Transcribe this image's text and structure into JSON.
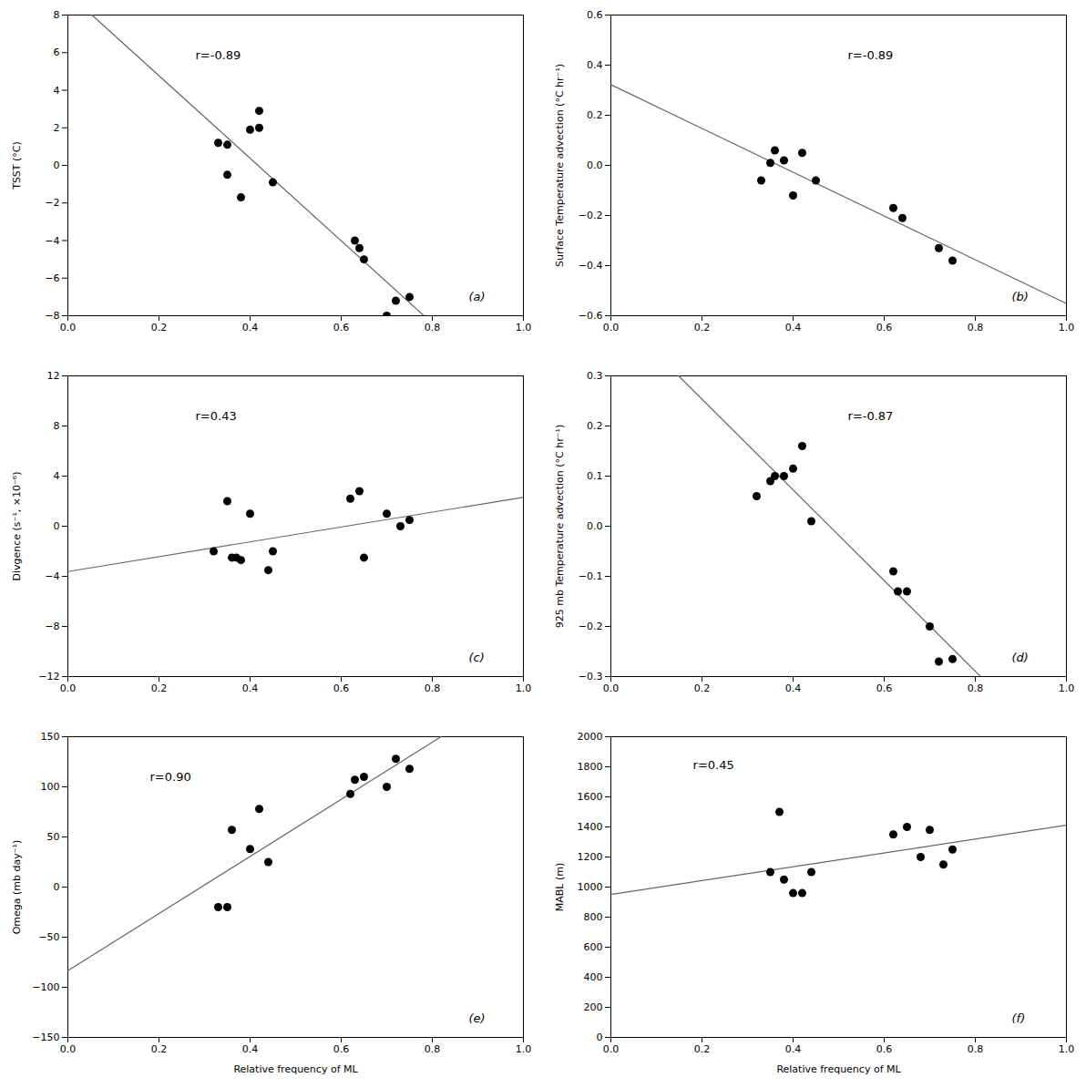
{
  "chart_data": [
    {
      "type": "scatter",
      "color": "black",
      "grid": false,
      "annotations": [
        "r=-0.89",
        "(a)"
      ],
      "ylabel": "TSST (°C)",
      "xlim": [
        0.0,
        1.0
      ],
      "ylim": [
        -8,
        8
      ],
      "xticks": [
        {
          "value": 0.0,
          "label": "0.0"
        },
        0.2,
        0.4,
        0.6,
        0.8,
        {
          "value": 1.0,
          "label": "1.0"
        }
      ],
      "yticks": [
        -8,
        -6,
        -4,
        -2,
        0,
        2,
        4,
        6,
        8
      ],
      "x": [
        0.33,
        0.35,
        0.35,
        0.38,
        0.4,
        0.42,
        0.42,
        0.45,
        0.63,
        0.64,
        0.65,
        0.7,
        0.72,
        0.75
      ],
      "values": [
        1.2,
        1.1,
        -0.5,
        -1.7,
        1.9,
        2.9,
        2.0,
        -0.9,
        -4.0,
        -4.4,
        -5.0,
        -8.0,
        -7.2,
        -7.0
      ],
      "regression_line": {
        "x": [
          0.0529,
          0.7817
        ],
        "y": [
          8,
          -8
        ],
        "color": "#666666"
      }
    },
    {
      "type": "scatter",
      "color": "black",
      "grid": false,
      "annotations": [
        "r=-0.89",
        "(b)"
      ],
      "ylabel": "Surface Temperature advection (°C hr⁻¹)",
      "xlim": [
        0.0,
        1.0
      ],
      "ylim": [
        -0.6,
        0.6
      ],
      "xticks": [
        {
          "value": 0.0,
          "label": "0.0"
        },
        0.2,
        0.4,
        0.6,
        0.8,
        {
          "value": 1.0,
          "label": "1.0"
        }
      ],
      "yticks": [
        -0.6,
        -0.4,
        -0.2,
        {
          "value": 0.0,
          "label": "0.0"
        },
        0.2,
        0.4,
        0.6
      ],
      "x": [
        0.33,
        0.35,
        0.36,
        0.38,
        0.4,
        0.42,
        0.45,
        0.62,
        0.64,
        0.72,
        0.75
      ],
      "values": [
        -0.06,
        0.01,
        0.06,
        0.02,
        -0.12,
        0.05,
        -0.06,
        -0.17,
        -0.21,
        -0.33,
        -0.38
      ],
      "regression_line": {
        "x": [
          0,
          1
        ],
        "y": [
          0.3222,
          -0.5513
        ],
        "color": "#666666"
      }
    },
    {
      "type": "scatter",
      "color": "black",
      "grid": false,
      "annotations": [
        "r=0.43",
        "(c)"
      ],
      "ylabel": "Divgence (s⁻¹, ×10⁻⁶)",
      "xlim": [
        0.0,
        1.0
      ],
      "ylim": [
        -12,
        12
      ],
      "xticks": [
        {
          "value": 0.0,
          "label": "0.0"
        },
        0.2,
        0.4,
        0.6,
        0.8,
        {
          "value": 1.0,
          "label": "1.0"
        }
      ],
      "yticks": [
        -12,
        -8,
        -4,
        0,
        4,
        8,
        12
      ],
      "x": [
        0.32,
        0.35,
        0.36,
        0.37,
        0.38,
        0.4,
        0.44,
        0.45,
        0.62,
        0.64,
        0.65,
        0.7,
        0.73,
        0.75
      ],
      "values": [
        -2.0,
        2.0,
        -2.5,
        -2.5,
        -2.7,
        1.0,
        -3.5,
        -2.0,
        2.2,
        2.8,
        -2.5,
        1.0,
        0.0,
        0.5
      ],
      "regression_line": {
        "x": [
          0,
          1
        ],
        "y": [
          -3.6187,
          2.3117
        ],
        "color": "#666666"
      }
    },
    {
      "type": "scatter",
      "color": "black",
      "grid": false,
      "annotations": [
        "r=-0.87",
        "(d)"
      ],
      "ylabel": "925 mb Temperature advection (°C hr⁻¹)",
      "xlim": [
        0.0,
        1.0
      ],
      "ylim": [
        -0.3,
        0.3
      ],
      "xticks": [
        {
          "value": 0.0,
          "label": "0.0"
        },
        0.2,
        0.4,
        0.6,
        0.8,
        {
          "value": 1.0,
          "label": "1.0"
        }
      ],
      "yticks": [
        -0.3,
        -0.2,
        -0.1,
        {
          "value": 0.0,
          "label": "0.0"
        },
        0.1,
        0.2,
        0.3
      ],
      "x": [
        0.32,
        0.35,
        0.36,
        0.38,
        0.4,
        0.42,
        0.44,
        0.62,
        0.63,
        0.65,
        0.7,
        0.72,
        0.75
      ],
      "values": [
        0.06,
        0.09,
        0.1,
        0.1,
        0.115,
        0.16,
        0.01,
        -0.09,
        -0.13,
        -0.13,
        -0.2,
        -0.27,
        -0.265
      ],
      "regression_line": {
        "x": [
          0.1486,
          0.8118
        ],
        "y": [
          0.3,
          -0.3
        ],
        "color": "#666666"
      }
    },
    {
      "type": "scatter",
      "color": "black",
      "grid": false,
      "annotations": [
        "r=0.90",
        "(e)"
      ],
      "ylabel": "Omega (mb day⁻¹)",
      "xlabel": "Relative frequency of ML",
      "xlim": [
        0.0,
        1.0
      ],
      "ylim": [
        -150,
        150
      ],
      "xticks": [
        {
          "value": 0.0,
          "label": "0.0"
        },
        0.2,
        0.4,
        0.6,
        0.8,
        {
          "value": 1.0,
          "label": "1.0"
        }
      ],
      "yticks": [
        -150,
        -100,
        -50,
        0,
        50,
        100,
        150
      ],
      "x": [
        0.33,
        0.35,
        0.36,
        0.4,
        0.42,
        0.44,
        0.62,
        0.63,
        0.65,
        0.7,
        0.72,
        0.75
      ],
      "values": [
        -20.0,
        -20.0,
        57.0,
        38.0,
        78.0,
        25.0,
        93.0,
        107.0,
        110.0,
        100.0,
        128.0,
        118.0
      ],
      "regression_line": {
        "x": [
          0,
          0.8192
        ],
        "y": [
          -83.4328,
          150
        ],
        "color": "#666666"
      }
    },
    {
      "type": "scatter",
      "color": "black",
      "grid": false,
      "annotations": [
        "r=0.45",
        "(f)"
      ],
      "ylabel": "MABL (m)",
      "xlabel": "Relative frequency of ML",
      "xlim": [
        0.0,
        1.0
      ],
      "ylim": [
        0,
        2000
      ],
      "xticks": [
        {
          "value": 0.0,
          "label": "0.0"
        },
        0.2,
        0.4,
        0.6,
        0.8,
        {
          "value": 1.0,
          "label": "1.0"
        }
      ],
      "yticks": [
        0,
        200,
        400,
        600,
        800,
        1000,
        1200,
        1400,
        1600,
        1800,
        2000
      ],
      "x": [
        0.35,
        0.37,
        0.38,
        0.4,
        0.42,
        0.44,
        0.62,
        0.65,
        0.68,
        0.7,
        0.73,
        0.75
      ],
      "values": [
        1100,
        1500,
        1050,
        960,
        960,
        1100,
        1350,
        1400,
        1200,
        1380,
        1150,
        1250
      ],
      "regression_line": {
        "x": [
          0,
          1
        ],
        "y": [
          951.0345,
          1411.3714
        ],
        "color": "#666666"
      }
    }
  ]
}
